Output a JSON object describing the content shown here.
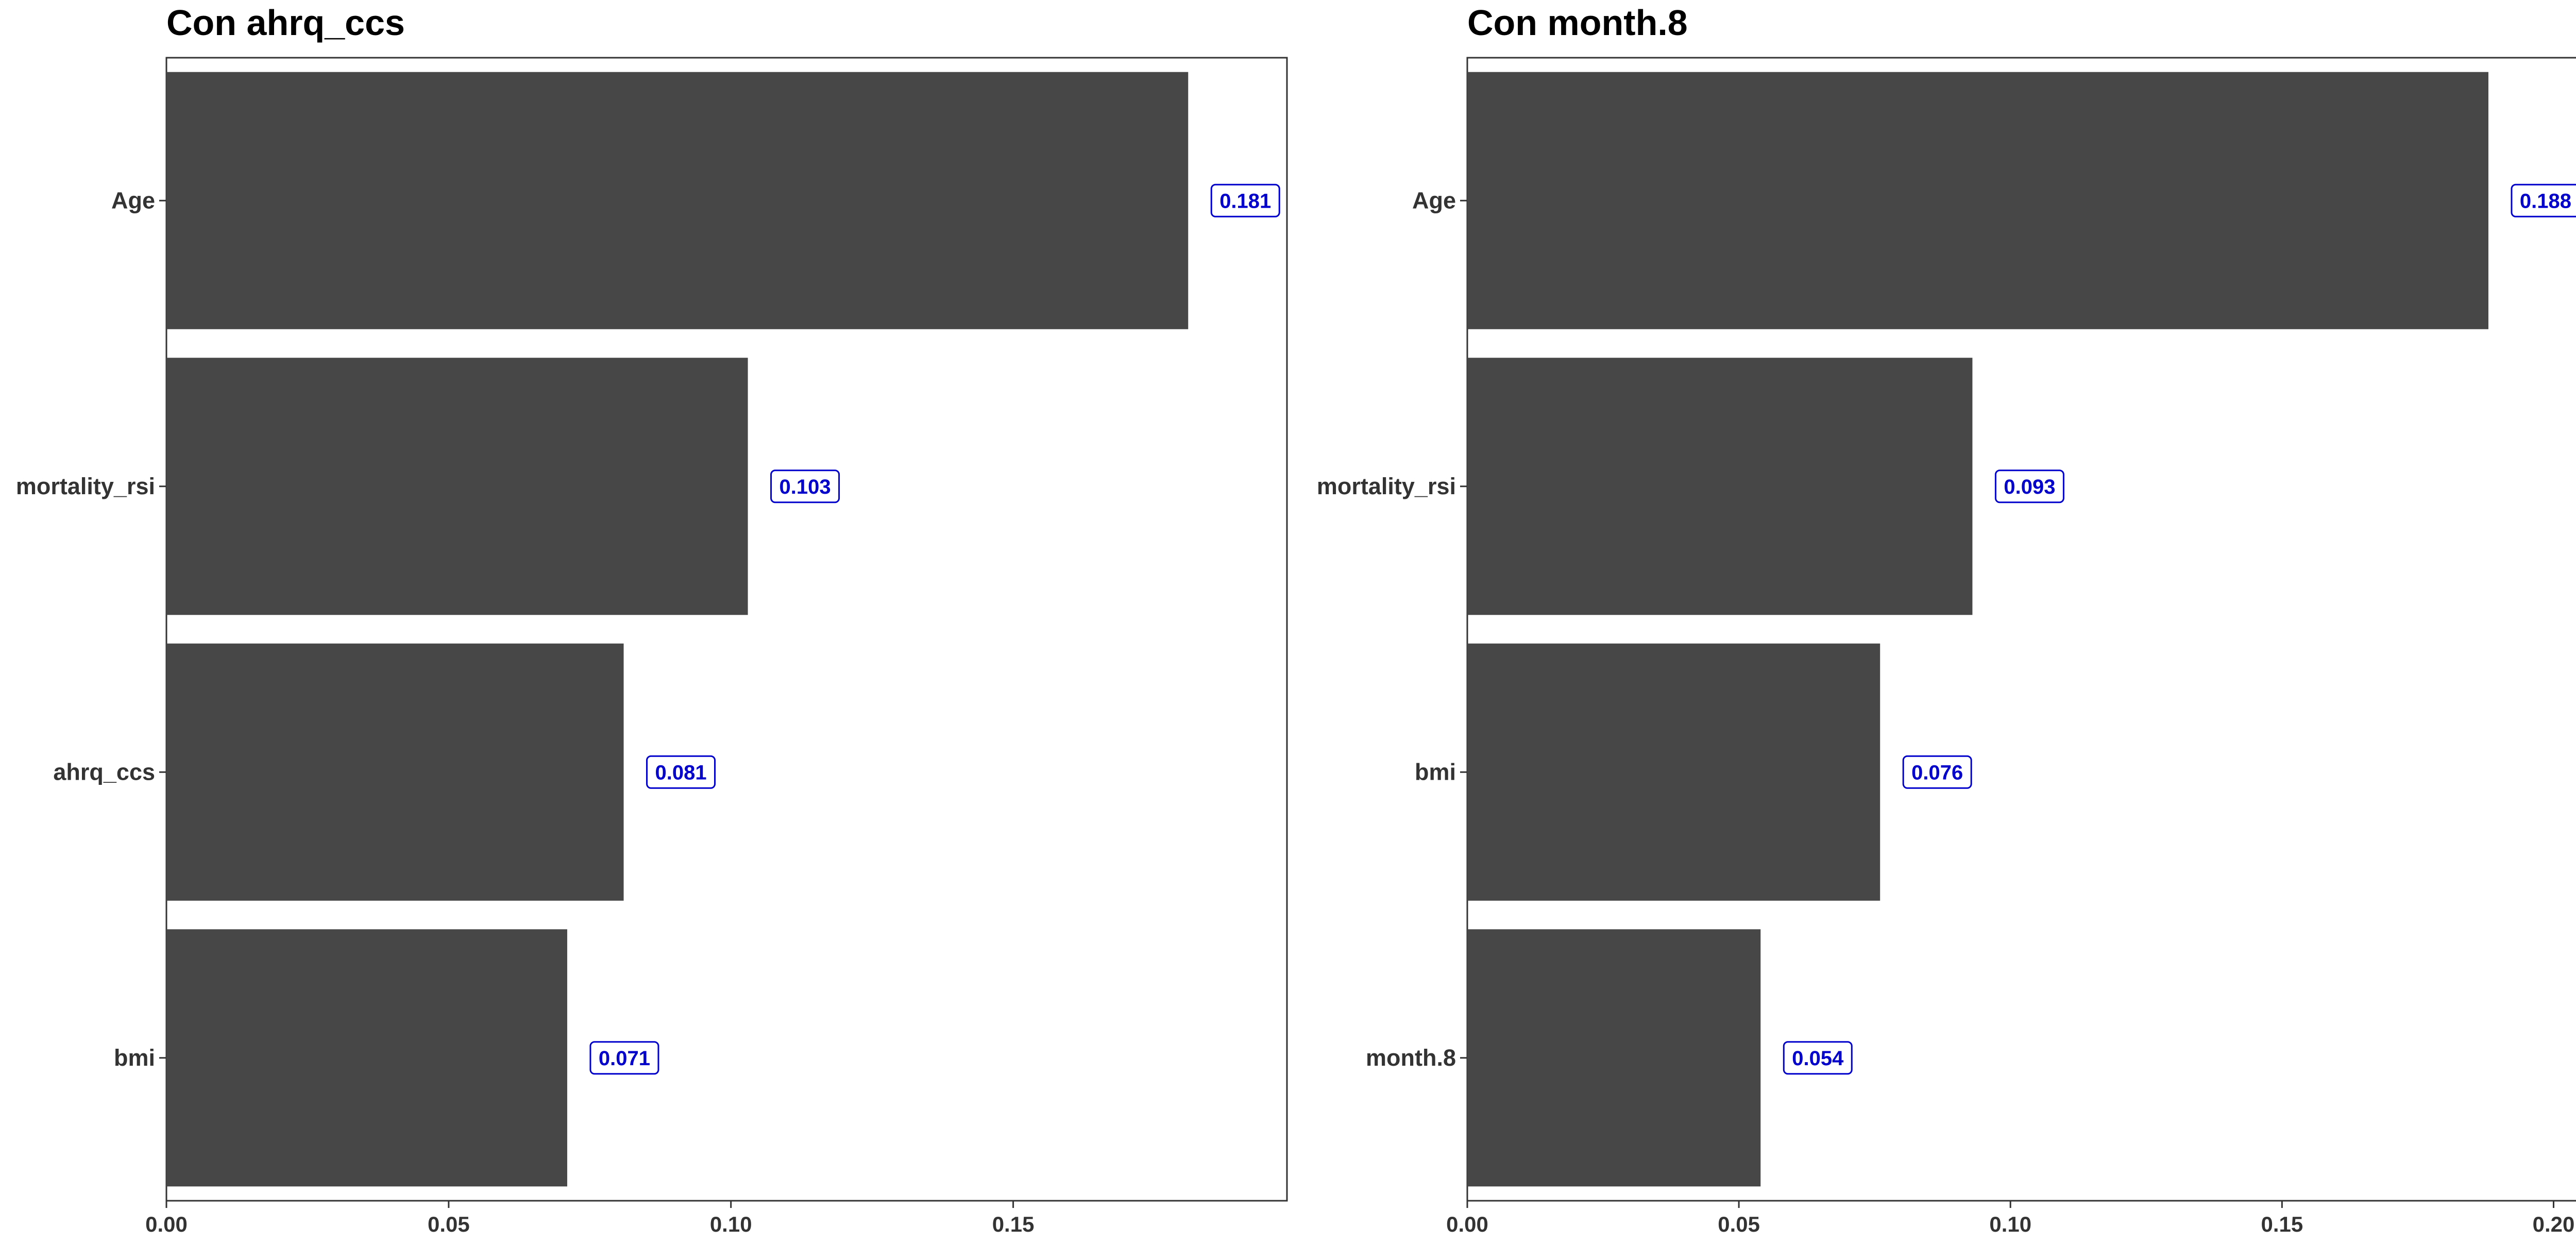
{
  "chart_data": [
    {
      "type": "bar",
      "orientation": "horizontal",
      "title": "Con ahrq_ccs",
      "xlabel": "",
      "ylabel": "",
      "categories": [
        "Age",
        "mortality_rsi",
        "ahrq_ccs",
        "bmi"
      ],
      "values": [
        0.181,
        0.103,
        0.081,
        0.071
      ],
      "data_labels": [
        "0.181",
        "0.103",
        "0.081",
        "0.071"
      ],
      "xlim": [
        0,
        0.1985
      ],
      "xticks": [
        0.0,
        0.05,
        0.1,
        0.15
      ],
      "xtick_labels": [
        "0.00",
        "0.05",
        "0.10",
        "0.15"
      ],
      "grid": false,
      "bar_color": "#474747",
      "label_color": "#0000cc"
    },
    {
      "type": "bar",
      "orientation": "horizontal",
      "title": "Con month.8",
      "xlabel": "",
      "ylabel": "",
      "categories": [
        "Age",
        "mortality_rsi",
        "bmi",
        "month.8"
      ],
      "values": [
        0.188,
        0.093,
        0.076,
        0.054
      ],
      "data_labels": [
        "0.188",
        "0.093",
        "0.076",
        "0.054"
      ],
      "xlim": [
        0,
        0.2065
      ],
      "xticks": [
        0.0,
        0.05,
        0.1,
        0.15,
        0.2
      ],
      "xtick_labels": [
        "0.00",
        "0.05",
        "0.10",
        "0.15",
        "0.20"
      ],
      "grid": false,
      "bar_color": "#474747",
      "label_color": "#0000cc"
    }
  ]
}
